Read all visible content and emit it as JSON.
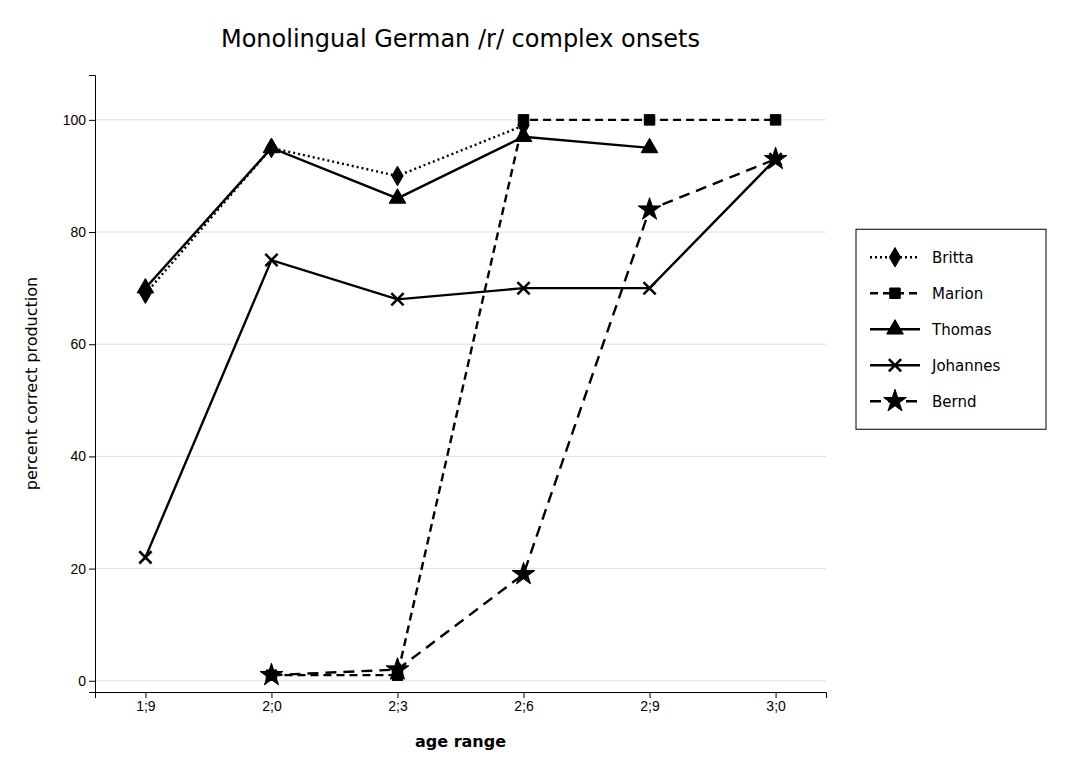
{
  "chart_data": {
    "type": "line",
    "title": "Monolingual German /r/ complex onsets",
    "x_label": "age range",
    "y_label": "percent correct production",
    "categories": [
      "1;9",
      "2;0",
      "2;3",
      "2;6",
      "2;9",
      "3;0"
    ],
    "series": [
      {
        "name": "Britta",
        "color": "#000000",
        "marker": "diamond",
        "line_style": "dotted",
        "values": [
          69,
          95,
          90,
          99,
          null,
          null
        ]
      },
      {
        "name": "Marion",
        "color": "#000000",
        "marker": "square",
        "line_style": "dashed",
        "values": [
          null,
          1,
          1,
          100,
          100,
          100
        ]
      },
      {
        "name": "Thomas",
        "color": "#000000",
        "marker": "triangle",
        "line_style": "solid",
        "values": [
          70,
          95,
          86,
          97,
          95,
          null
        ]
      },
      {
        "name": "Johannes",
        "color": "#000000",
        "marker": "x",
        "line_style": "solid",
        "values": [
          22,
          75,
          68,
          70,
          70,
          93
        ]
      },
      {
        "name": "Bernd",
        "color": "#000000",
        "marker": "star",
        "line_style": "loosely_dashed",
        "values": [
          null,
          1,
          2,
          19,
          84,
          93
        ]
      }
    ],
    "ylim": [
      -2,
      108
    ],
    "yticks": [
      0,
      20,
      40,
      60,
      80,
      100
    ],
    "grid": true,
    "legend": "right"
  }
}
